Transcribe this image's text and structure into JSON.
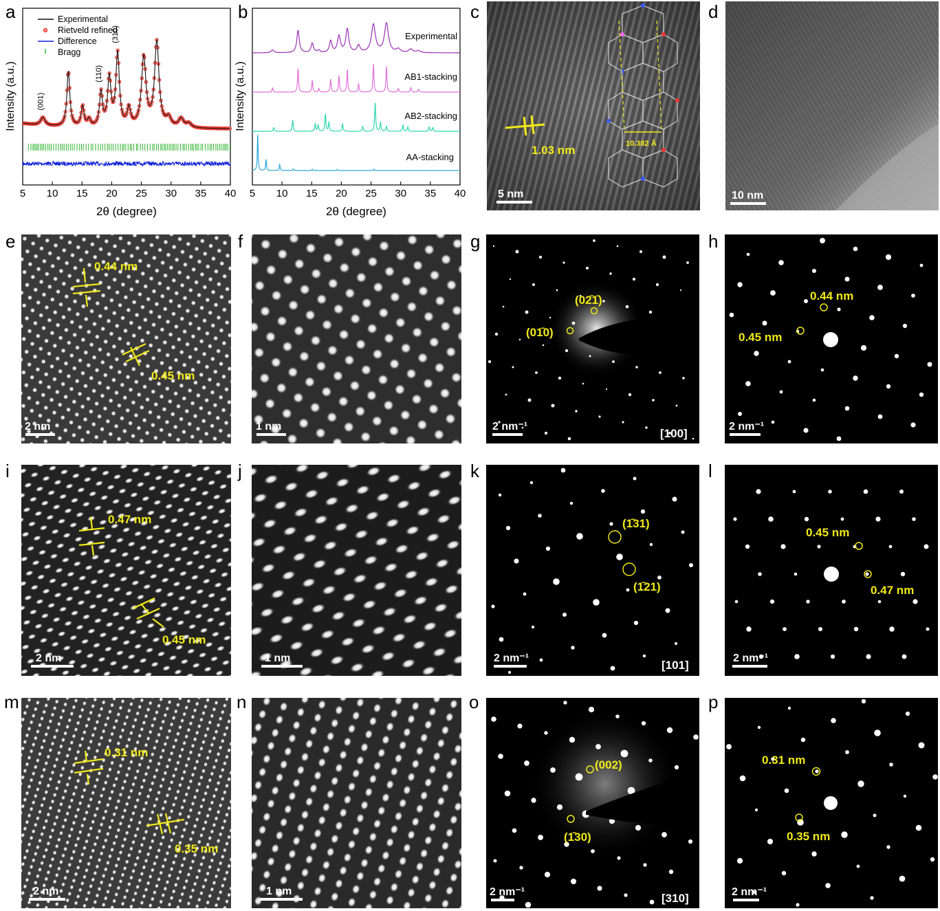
{
  "panel_letters": [
    "a",
    "b",
    "c",
    "d",
    "e",
    "f",
    "g",
    "h",
    "i",
    "j",
    "k",
    "l",
    "m",
    "n",
    "o",
    "p"
  ],
  "chart_data": [
    {
      "type": "line",
      "panel": "a",
      "title": "",
      "xlabel": "2θ (degree)",
      "ylabel": "Intensity (a.u.)",
      "xlim": [
        5,
        40
      ],
      "xticks": [
        5,
        10,
        15,
        20,
        25,
        30,
        35,
        40
      ],
      "legend": [
        "Experimental",
        "Rietveld refined",
        "Difference",
        "Bragg"
      ],
      "legend_position": "top-left",
      "peaks": [
        {
          "x": 8.4,
          "h": 0.09,
          "w": 0.45
        },
        {
          "x": 12.7,
          "h": 0.62,
          "w": 0.3
        },
        {
          "x": 15.1,
          "h": 0.23,
          "w": 0.3
        },
        {
          "x": 16.2,
          "h": 0.08,
          "w": 0.3
        },
        {
          "x": 18.2,
          "h": 0.38,
          "w": 0.3
        },
        {
          "x": 19.6,
          "h": 0.54,
          "w": 0.35
        },
        {
          "x": 21.0,
          "h": 0.82,
          "w": 0.35
        },
        {
          "x": 22.9,
          "h": 0.2,
          "w": 0.35
        },
        {
          "x": 25.4,
          "h": 0.78,
          "w": 0.45
        },
        {
          "x": 27.6,
          "h": 0.95,
          "w": 0.45
        },
        {
          "x": 29.6,
          "h": 0.1,
          "w": 0.5
        },
        {
          "x": 31.7,
          "h": 0.1,
          "w": 0.5
        },
        {
          "x": 33.0,
          "h": 0.05,
          "w": 0.5
        }
      ],
      "peak_annotations": [
        {
          "label": "(001)",
          "x": 8.4
        },
        {
          "label": "(110)",
          "x": 18.2
        },
        {
          "label": "(310)",
          "x": 21.0
        }
      ],
      "series_colors": {
        "experimental": "#111111",
        "refined": "#e8261f",
        "difference": "#1020d8",
        "bragg": "#2db52d"
      }
    },
    {
      "type": "line",
      "panel": "b",
      "title": "",
      "xlabel": "2θ (degree)",
      "ylabel": "Intensity (a.u.)",
      "xlim": [
        5,
        40
      ],
      "xticks": [
        5,
        10,
        15,
        20,
        25,
        30,
        35,
        40
      ],
      "series": [
        {
          "name": "Experimental",
          "color": "#9b2fb4",
          "peaks": [
            [
              8.4,
              0.12,
              0.3
            ],
            [
              12.7,
              0.95,
              0.25
            ],
            [
              15.1,
              0.4,
              0.25
            ],
            [
              16.2,
              0.1,
              0.25
            ],
            [
              18.2,
              0.5,
              0.25
            ],
            [
              19.6,
              0.7,
              0.3
            ],
            [
              21.0,
              1.0,
              0.3
            ],
            [
              22.9,
              0.3,
              0.3
            ],
            [
              25.4,
              1.2,
              0.4
            ],
            [
              27.6,
              1.25,
              0.4
            ],
            [
              29.6,
              0.15,
              0.4
            ],
            [
              31.7,
              0.15,
              0.4
            ],
            [
              33.0,
              0.08,
              0.4
            ]
          ]
        },
        {
          "name": "AB1-stacking",
          "color": "#e070d8",
          "peaks": [
            [
              8.4,
              0.18,
              0.1
            ],
            [
              12.7,
              1.0,
              0.1
            ],
            [
              15.1,
              0.5,
              0.1
            ],
            [
              16.2,
              0.15,
              0.1
            ],
            [
              18.2,
              0.55,
              0.1
            ],
            [
              19.6,
              0.7,
              0.1
            ],
            [
              21.0,
              0.95,
              0.1
            ],
            [
              22.9,
              0.35,
              0.1
            ],
            [
              25.4,
              1.2,
              0.1
            ],
            [
              27.6,
              1.1,
              0.1
            ],
            [
              29.6,
              0.15,
              0.1
            ],
            [
              31.7,
              0.2,
              0.1
            ],
            [
              33.0,
              0.12,
              0.1
            ]
          ]
        },
        {
          "name": "AB2-stacking",
          "color": "#2ed6b0",
          "peaks": [
            [
              8.6,
              0.15,
              0.1
            ],
            [
              11.8,
              0.45,
              0.1
            ],
            [
              15.6,
              0.3,
              0.1
            ],
            [
              16.1,
              0.25,
              0.1
            ],
            [
              17.3,
              0.7,
              0.1
            ],
            [
              17.9,
              0.35,
              0.1
            ],
            [
              20.2,
              0.3,
              0.1
            ],
            [
              23.6,
              0.2,
              0.1
            ],
            [
              25.7,
              1.15,
              0.1
            ],
            [
              26.6,
              0.35,
              0.1
            ],
            [
              27.6,
              0.2,
              0.1
            ],
            [
              30.4,
              0.25,
              0.1
            ],
            [
              31.2,
              0.18,
              0.1
            ],
            [
              34.8,
              0.18,
              0.1
            ],
            [
              35.4,
              0.15,
              0.1
            ]
          ]
        },
        {
          "name": "AA-stacking",
          "color": "#2aa8d8",
          "peaks": [
            [
              5.9,
              1.3,
              0.08
            ],
            [
              7.3,
              0.4,
              0.08
            ],
            [
              9.6,
              0.22,
              0.08
            ],
            [
              11.9,
              0.06,
              0.08
            ],
            [
              15.1,
              0.05,
              0.08
            ],
            [
              19.3,
              0.04,
              0.08
            ],
            [
              25.5,
              0.05,
              0.08
            ]
          ]
        }
      ]
    }
  ],
  "panel_c": {
    "spacing_label": "1.03 nm",
    "inset_label": "10.382 Å",
    "scalebar": "5 nm"
  },
  "panel_d": {
    "scalebar": "10 nm"
  },
  "panel_e": {
    "labels": [
      "0.44 nm",
      "0.45 nm"
    ],
    "scalebar": "2 nm"
  },
  "panel_f": {
    "scalebar": "1 nm"
  },
  "panel_g": {
    "spots": [
      "(02̄1̄)",
      "(01̄0)"
    ],
    "scalebar": "2 nm⁻¹",
    "zone": "[100]"
  },
  "panel_h": {
    "labels": [
      "0.44 nm",
      "0.45 nm"
    ],
    "scalebar": "2 nm⁻¹"
  },
  "panel_i": {
    "labels": [
      "0.47 nm",
      "0.45 nm"
    ],
    "scalebar": "2 nm"
  },
  "panel_j": {
    "scalebar": "1 nm"
  },
  "panel_k": {
    "spots": [
      "(1̄31)",
      "(1̄21)"
    ],
    "scalebar": "2 nm⁻¹",
    "zone": "[101]"
  },
  "panel_l": {
    "labels": [
      "0.45 nm",
      "0.47 nm"
    ],
    "scalebar": "2 nm⁻¹"
  },
  "panel_m": {
    "labels": [
      "0.31 nm",
      "0.35 nm"
    ],
    "scalebar": "2 nm"
  },
  "panel_n": {
    "scalebar": "1 nm"
  },
  "panel_o": {
    "spots": [
      "(002)",
      "(1̄30)"
    ],
    "scalebar": "2 nm⁻¹",
    "zone": "[310]"
  },
  "panel_p": {
    "labels": [
      "0.31 nm",
      "0.35 nm"
    ],
    "scalebar": "2 nm⁻¹"
  }
}
